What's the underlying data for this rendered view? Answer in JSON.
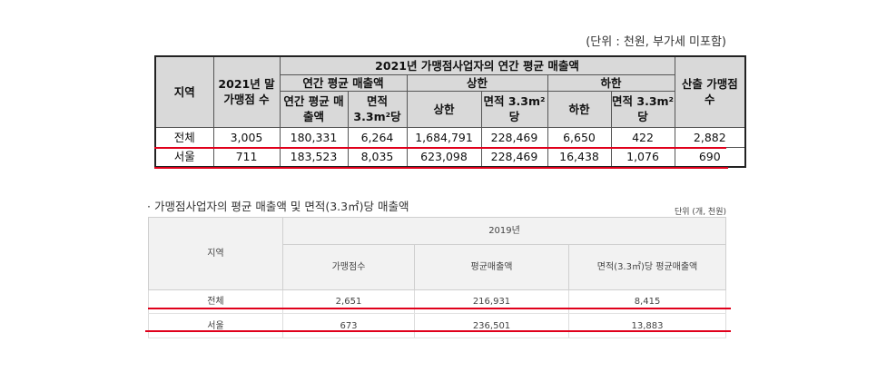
{
  "table1": {
    "unit_note": "(단위 : 천원, 부가세 미포함)",
    "headers": {
      "region": "지역",
      "stores_2021": "2021년 말 가맹점 수",
      "group_title": "2021년 가맹점사업자의 연간 평균 매출액",
      "annual_avg": "연간 평균 매출액",
      "upper": "상한",
      "lower": "하한",
      "calc": "산출 가맹점 수",
      "sales": "연간 평균 매출액",
      "per_area": "면적 3.3m²당",
      "upper_sales": "상한",
      "upper_area": "면적 3.3m²당",
      "lower_sales": "하한",
      "lower_area": "면적 3.3m²당"
    },
    "rows": [
      {
        "region": "전체",
        "stores": "3,005",
        "sales": "180,331",
        "area": "6,264",
        "upper": "1,684,791",
        "upper_area": "228,469",
        "lower": "6,650",
        "lower_area": "422",
        "calc": "2,882"
      },
      {
        "region": "서울",
        "stores": "711",
        "sales": "183,523",
        "area": "8,035",
        "upper": "623,098",
        "upper_area": "228,469",
        "lower": "16,438",
        "lower_area": "1,076",
        "calc": "690"
      }
    ]
  },
  "table2": {
    "caption": "· 가맹점사업자의 평균 매출액 및 면적(3.3㎡)당 매출액",
    "unit_note": "단위 (개, 천원)",
    "headers": {
      "region": "지역",
      "year": "2019년",
      "stores": "가맹점수",
      "avg_sales": "평균매출액",
      "area_sales": "면적(3.3㎡)당 평균매출액"
    },
    "rows": [
      {
        "region": "전체",
        "stores": "2,651",
        "avg_sales": "216,931",
        "area_sales": "8,415"
      },
      {
        "region": "서울",
        "stores": "673",
        "avg_sales": "236,501",
        "area_sales": "13,883"
      }
    ]
  },
  "colors": {
    "highlight_line": "#e0001b",
    "header_bg": "#d9d9d9"
  }
}
